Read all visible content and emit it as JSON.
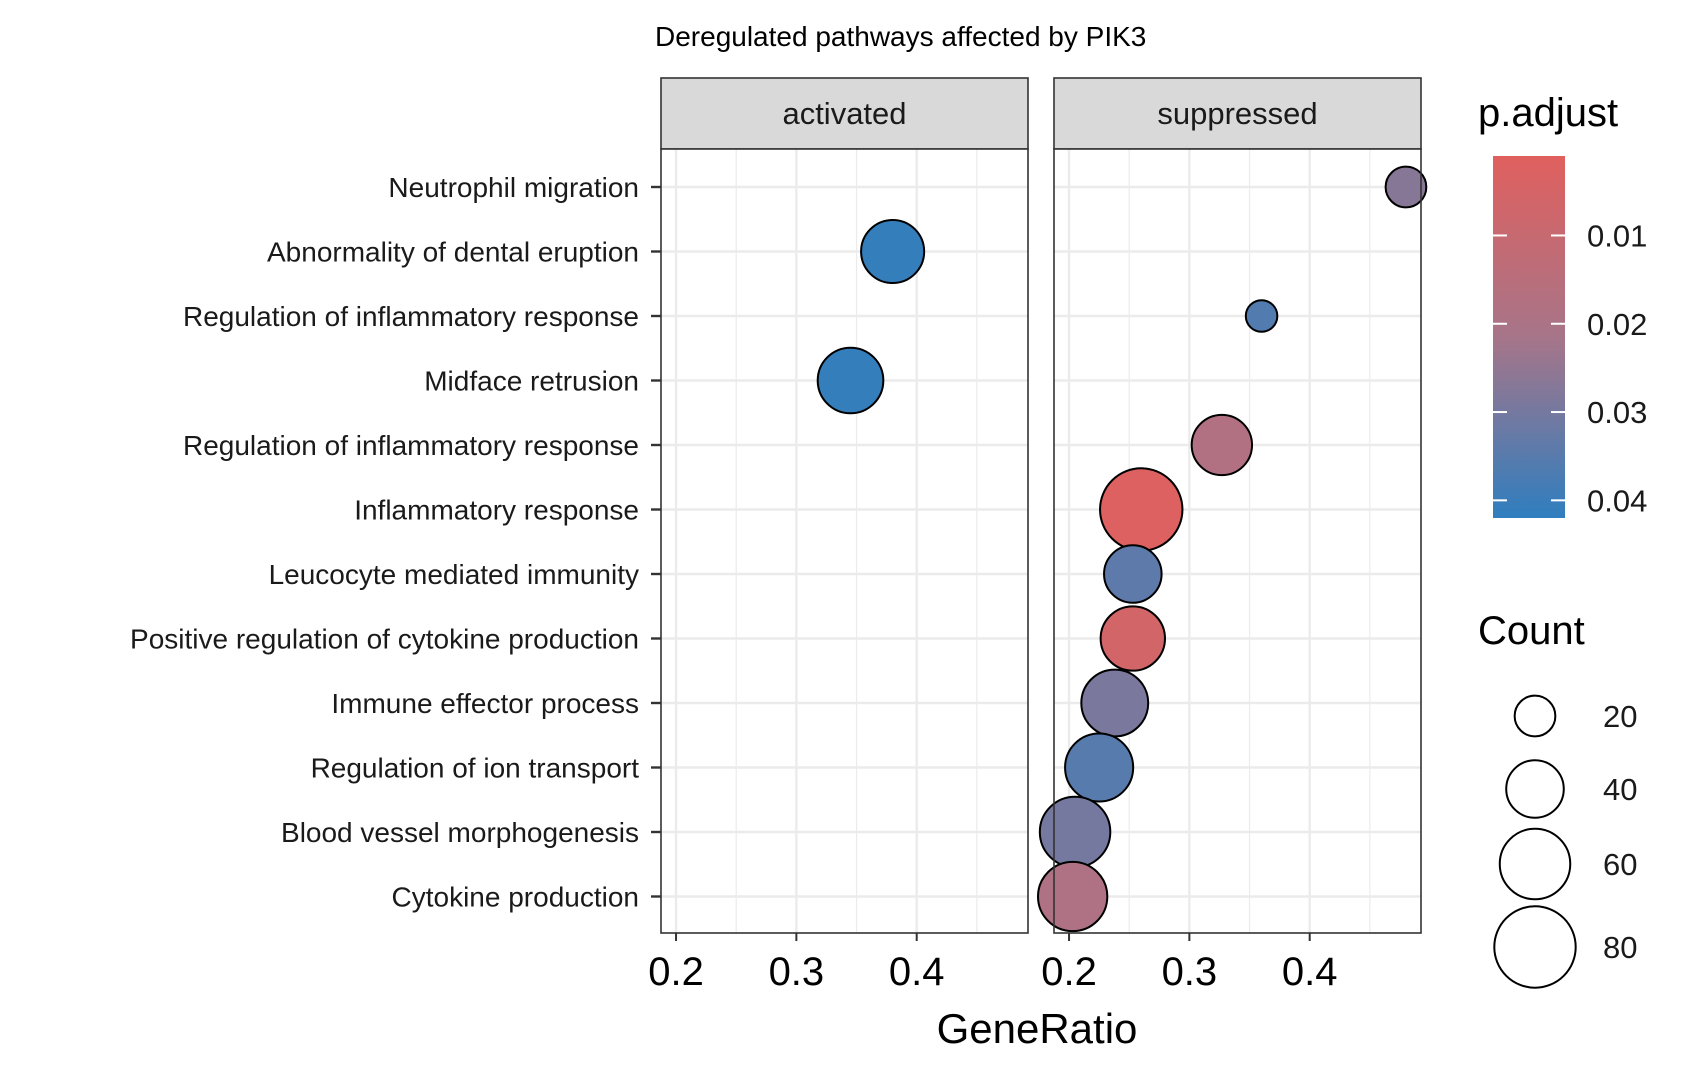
{
  "chart_data": {
    "type": "scatter",
    "title": "Deregulated pathways affected by PIK3",
    "xlabel": "GeneRatio",
    "ylabel": "",
    "xlim": [
      0.1875,
      0.4925
    ],
    "xticks": [
      "0.2",
      "0.3",
      "0.4"
    ],
    "xtick_values": [
      0.2,
      0.3,
      0.4
    ],
    "grid": true,
    "categories": [
      "Neutrophil migration",
      "Abnormality of dental eruption",
      "Regulation of inflammatory response",
      "Midface retrusion",
      "Regulation of inflammatory response",
      "Inflammatory response",
      "Leucocyte mediated immunity",
      "Positive regulation of cytokine production",
      "Immune effector process",
      "Regulation of ion transport",
      "Blood vessel morphogenesis",
      "Cytokine production"
    ],
    "panels": [
      {
        "name": "activated",
        "points": [
          {
            "category_index": 1,
            "x": 0.38,
            "count": 48,
            "p_adjust": 0.041
          },
          {
            "category_index": 3,
            "x": 0.345,
            "count": 52,
            "p_adjust": 0.041
          }
        ]
      },
      {
        "name": "suppressed",
        "points": [
          {
            "category_index": 0,
            "x": 0.48,
            "count": 20,
            "p_adjust": 0.027
          },
          {
            "category_index": 2,
            "x": 0.36,
            "count": 12,
            "p_adjust": 0.036
          },
          {
            "category_index": 4,
            "x": 0.327,
            "count": 44,
            "p_adjust": 0.018
          },
          {
            "category_index": 5,
            "x": 0.26,
            "count": 82,
            "p_adjust": 0.002
          },
          {
            "category_index": 6,
            "x": 0.253,
            "count": 40,
            "p_adjust": 0.034
          },
          {
            "category_index": 7,
            "x": 0.253,
            "count": 50,
            "p_adjust": 0.006
          },
          {
            "category_index": 8,
            "x": 0.238,
            "count": 54,
            "p_adjust": 0.029
          },
          {
            "category_index": 9,
            "x": 0.225,
            "count": 56,
            "p_adjust": 0.035
          },
          {
            "category_index": 10,
            "x": 0.205,
            "count": 60,
            "p_adjust": 0.03
          },
          {
            "category_index": 11,
            "x": 0.203,
            "count": 58,
            "p_adjust": 0.019
          }
        ]
      }
    ],
    "color_legend": {
      "title": "p.adjust",
      "labels": [
        "0.01",
        "0.02",
        "0.03",
        "0.04"
      ],
      "values": [
        0.01,
        0.02,
        0.03,
        0.04
      ],
      "range": [
        0.001,
        0.042
      ],
      "low_color": "#E0605E",
      "high_color": "#2F7EBF"
    },
    "size_legend": {
      "title": "Count",
      "labels": [
        "20",
        "40",
        "60",
        "80"
      ],
      "values": [
        20,
        40,
        60,
        80
      ]
    },
    "legend_position": "right"
  }
}
